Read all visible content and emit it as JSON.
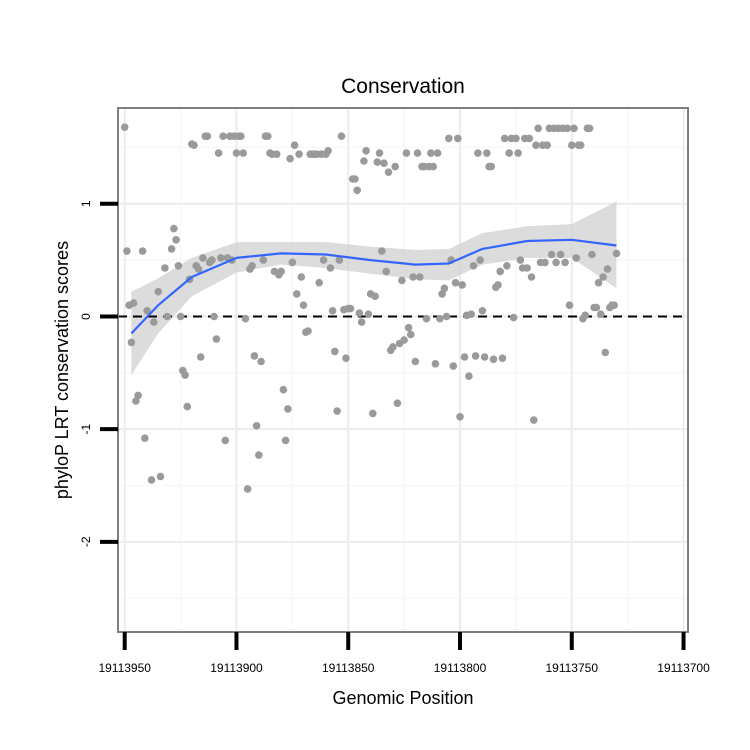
{
  "chart_data": {
    "type": "scatter",
    "title": "Conservation",
    "xlabel": "Genomic Position",
    "ylabel": "phyloP LRT conservation scores",
    "x_reversed": true,
    "xlim": [
      19113953,
      19113698
    ],
    "ylim": [
      -2.8,
      1.85
    ],
    "x_ticks": [
      19113950,
      19113900,
      19113850,
      19113800,
      19113750,
      19113700
    ],
    "y_ticks": [
      -2,
      -1,
      0,
      1
    ],
    "reference_line": {
      "y": 0,
      "style": "dashed"
    },
    "grid": true,
    "colors": {
      "points": "#9a9a9a",
      "smooth_line": "#3366ff",
      "confidence_band": "#d0d0d0",
      "panel_border": "#7f7f7f",
      "grid": "#ececec"
    },
    "points": [
      [
        19113950,
        1.68
      ],
      [
        19113949,
        0.58
      ],
      [
        19113948,
        0.1
      ],
      [
        19113947,
        -0.23
      ],
      [
        19113946,
        0.12
      ],
      [
        19113945,
        -0.75
      ],
      [
        19113944,
        -0.7
      ],
      [
        19113942,
        0.58
      ],
      [
        19113941,
        -1.08
      ],
      [
        19113940,
        0.05
      ],
      [
        19113938,
        -1.45
      ],
      [
        19113937,
        -0.05
      ],
      [
        19113935,
        0.22
      ],
      [
        19113934,
        -1.42
      ],
      [
        19113932,
        0.43
      ],
      [
        19113931,
        0.0
      ],
      [
        19113929,
        0.6
      ],
      [
        19113928,
        0.78
      ],
      [
        19113927,
        0.68
      ],
      [
        19113926,
        0.45
      ],
      [
        19113925,
        0.0
      ],
      [
        19113924,
        -0.48
      ],
      [
        19113923,
        -0.52
      ],
      [
        19113922,
        -0.8
      ],
      [
        19113921,
        0.33
      ],
      [
        19113920,
        1.53
      ],
      [
        19113919,
        1.52
      ],
      [
        19113918,
        0.45
      ],
      [
        19113917,
        0.42
      ],
      [
        19113916,
        -0.36
      ],
      [
        19113915,
        0.52
      ],
      [
        19113914,
        1.6
      ],
      [
        19113913,
        1.6
      ],
      [
        19113912,
        0.48
      ],
      [
        19113911,
        0.5
      ],
      [
        19113910,
        0.0
      ],
      [
        19113909,
        -0.2
      ],
      [
        19113908,
        1.45
      ],
      [
        19113907,
        0.52
      ],
      [
        19113906,
        1.6
      ],
      [
        19113905,
        -1.1
      ],
      [
        19113904,
        0.52
      ],
      [
        19113903,
        1.6
      ],
      [
        19113902,
        0.5
      ],
      [
        19113901,
        1.6
      ],
      [
        19113900,
        1.45
      ],
      [
        19113899,
        1.6
      ],
      [
        19113898,
        1.6
      ],
      [
        19113897,
        1.45
      ],
      [
        19113896,
        -0.02
      ],
      [
        19113895,
        -1.53
      ],
      [
        19113894,
        0.42
      ],
      [
        19113893,
        0.45
      ],
      [
        19113892,
        -0.35
      ],
      [
        19113891,
        -0.97
      ],
      [
        19113890,
        -1.23
      ],
      [
        19113889,
        -0.4
      ],
      [
        19113888,
        0.5
      ],
      [
        19113887,
        1.6
      ],
      [
        19113886,
        1.6
      ],
      [
        19113885,
        1.45
      ],
      [
        19113884,
        1.44
      ],
      [
        19113883,
        0.4
      ],
      [
        19113882,
        1.44
      ],
      [
        19113881,
        0.37
      ],
      [
        19113880,
        0.4
      ],
      [
        19113879,
        -0.65
      ],
      [
        19113878,
        -1.1
      ],
      [
        19113877,
        -0.82
      ],
      [
        19113876,
        1.4
      ],
      [
        19113875,
        0.48
      ],
      [
        19113874,
        1.52
      ],
      [
        19113873,
        0.2
      ],
      [
        19113872,
        1.44
      ],
      [
        19113871,
        0.35
      ],
      [
        19113870,
        0.1
      ],
      [
        19113869,
        -0.14
      ],
      [
        19113868,
        -0.13
      ],
      [
        19113867,
        1.44
      ],
      [
        19113866,
        1.44
      ],
      [
        19113865,
        1.44
      ],
      [
        19113864,
        1.44
      ],
      [
        19113863,
        0.3
      ],
      [
        19113862,
        1.44
      ],
      [
        19113861,
        0.5
      ],
      [
        19113860,
        1.44
      ],
      [
        19113859,
        1.47
      ],
      [
        19113858,
        0.43
      ],
      [
        19113857,
        0.05
      ],
      [
        19113856,
        -0.31
      ],
      [
        19113855,
        -0.84
      ],
      [
        19113854,
        0.5
      ],
      [
        19113853,
        1.6
      ],
      [
        19113852,
        0.06
      ],
      [
        19113851,
        -0.37
      ],
      [
        19113850,
        0.07
      ],
      [
        19113849,
        0.07
      ],
      [
        19113848,
        1.22
      ],
      [
        19113847,
        1.22
      ],
      [
        19113846,
        1.12
      ],
      [
        19113845,
        0.03
      ],
      [
        19113844,
        -0.05
      ],
      [
        19113843,
        1.38
      ],
      [
        19113842,
        1.47
      ],
      [
        19113841,
        0.02
      ],
      [
        19113840,
        0.2
      ],
      [
        19113839,
        -0.86
      ],
      [
        19113838,
        0.18
      ],
      [
        19113837,
        1.37
      ],
      [
        19113836,
        1.45
      ],
      [
        19113835,
        0.58
      ],
      [
        19113834,
        1.36
      ],
      [
        19113833,
        0.4
      ],
      [
        19113832,
        1.28
      ],
      [
        19113831,
        -0.3
      ],
      [
        19113830,
        -0.27
      ],
      [
        19113829,
        1.33
      ],
      [
        19113828,
        -0.77
      ],
      [
        19113827,
        -0.24
      ],
      [
        19113826,
        0.32
      ],
      [
        19113825,
        -0.21
      ],
      [
        19113824,
        1.45
      ],
      [
        19113823,
        -0.1
      ],
      [
        19113822,
        -0.16
      ],
      [
        19113821,
        0.35
      ],
      [
        19113820,
        -0.4
      ],
      [
        19113819,
        1.45
      ],
      [
        19113818,
        0.35
      ],
      [
        19113817,
        1.33
      ],
      [
        19113816,
        1.33
      ],
      [
        19113815,
        -0.02
      ],
      [
        19113814,
        1.33
      ],
      [
        19113813,
        1.45
      ],
      [
        19113812,
        1.33
      ],
      [
        19113811,
        -0.42
      ],
      [
        19113810,
        1.45
      ],
      [
        19113809,
        -0.02
      ],
      [
        19113808,
        0.2
      ],
      [
        19113807,
        0.25
      ],
      [
        19113806,
        0.0
      ],
      [
        19113805,
        1.58
      ],
      [
        19113804,
        0.5
      ],
      [
        19113803,
        -0.44
      ],
      [
        19113802,
        0.3
      ],
      [
        19113801,
        1.58
      ],
      [
        19113800,
        -0.89
      ],
      [
        19113799,
        0.28
      ],
      [
        19113798,
        -0.36
      ],
      [
        19113797,
        0.01
      ],
      [
        19113796,
        -0.53
      ],
      [
        19113795,
        0.02
      ],
      [
        19113794,
        0.45
      ],
      [
        19113793,
        -0.35
      ],
      [
        19113792,
        1.45
      ],
      [
        19113791,
        0.5
      ],
      [
        19113790,
        0.05
      ],
      [
        19113789,
        -0.36
      ],
      [
        19113788,
        1.45
      ],
      [
        19113787,
        1.33
      ],
      [
        19113786,
        1.33
      ],
      [
        19113785,
        -0.38
      ],
      [
        19113784,
        0.26
      ],
      [
        19113783,
        0.28
      ],
      [
        19113782,
        0.4
      ],
      [
        19113781,
        -0.37
      ],
      [
        19113780,
        1.58
      ],
      [
        19113779,
        0.45
      ],
      [
        19113778,
        1.45
      ],
      [
        19113777,
        1.58
      ],
      [
        19113776,
        -0.01
      ],
      [
        19113775,
        1.58
      ],
      [
        19113774,
        1.45
      ],
      [
        19113773,
        0.5
      ],
      [
        19113772,
        0.43
      ],
      [
        19113771,
        1.58
      ],
      [
        19113770,
        0.43
      ],
      [
        19113769,
        1.58
      ],
      [
        19113768,
        0.35
      ],
      [
        19113767,
        -0.92
      ],
      [
        19113766,
        1.52
      ],
      [
        19113765,
        1.67
      ],
      [
        19113764,
        0.48
      ],
      [
        19113763,
        1.52
      ],
      [
        19113762,
        0.48
      ],
      [
        19113761,
        1.52
      ],
      [
        19113760,
        1.67
      ],
      [
        19113759,
        0.55
      ],
      [
        19113758,
        1.67
      ],
      [
        19113757,
        0.48
      ],
      [
        19113756,
        1.67
      ],
      [
        19113755,
        0.55
      ],
      [
        19113754,
        1.67
      ],
      [
        19113753,
        0.48
      ],
      [
        19113752,
        1.67
      ],
      [
        19113751,
        0.1
      ],
      [
        19113750,
        1.52
      ],
      [
        19113749,
        1.67
      ],
      [
        19113748,
        0.52
      ],
      [
        19113747,
        1.52
      ],
      [
        19113746,
        1.52
      ],
      [
        19113745,
        -0.02
      ],
      [
        19113744,
        0.01
      ],
      [
        19113743,
        1.67
      ],
      [
        19113742,
        1.67
      ],
      [
        19113741,
        0.55
      ],
      [
        19113740,
        0.08
      ],
      [
        19113739,
        0.08
      ],
      [
        19113738,
        0.3
      ],
      [
        19113737,
        0.02
      ],
      [
        19113736,
        0.35
      ],
      [
        19113735,
        -0.32
      ],
      [
        19113734,
        0.42
      ],
      [
        19113733,
        0.08
      ],
      [
        19113732,
        0.1
      ],
      [
        19113731,
        0.1
      ],
      [
        19113730,
        0.56
      ]
    ],
    "smooth": {
      "method": "loess",
      "x": [
        19113947,
        19113935,
        19113920,
        19113900,
        19113880,
        19113860,
        19113840,
        19113820,
        19113805,
        19113790,
        19113770,
        19113750,
        19113730
      ],
      "y": [
        -0.15,
        0.1,
        0.35,
        0.52,
        0.56,
        0.55,
        0.5,
        0.46,
        0.47,
        0.6,
        0.67,
        0.68,
        0.63
      ],
      "lower": [
        -0.52,
        -0.15,
        0.18,
        0.39,
        0.46,
        0.43,
        0.38,
        0.33,
        0.32,
        0.46,
        0.52,
        0.52,
        0.25
      ],
      "upper": [
        0.22,
        0.34,
        0.52,
        0.66,
        0.66,
        0.66,
        0.62,
        0.59,
        0.6,
        0.74,
        0.8,
        0.82,
        1.02
      ]
    }
  }
}
